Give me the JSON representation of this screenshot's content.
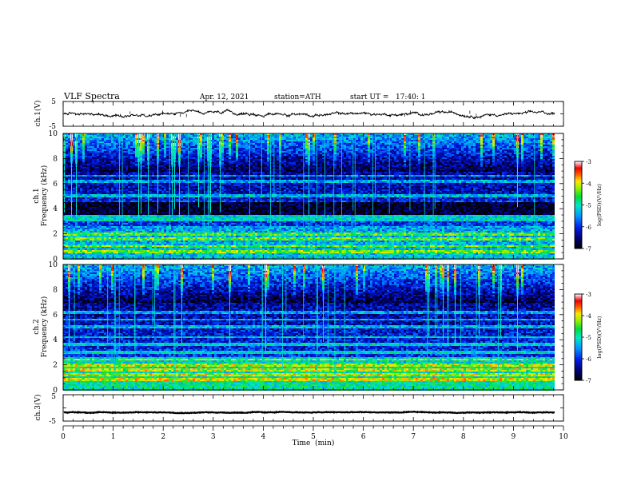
{
  "header": {
    "title": "VLF Spectra",
    "date": "Apr. 12, 2021",
    "station": "station=ATH",
    "start": "start UT =   17:40: 1"
  },
  "chart_data": [
    {
      "type": "line",
      "panel": "ch1-waveform",
      "ylabel": "ch.1(V)",
      "yticks": [
        "5",
        "-5"
      ],
      "ylim": [
        -5,
        5
      ],
      "mean_level_v": 0.0,
      "noise_amplitude_v": 0.5
    },
    {
      "type": "heatmap",
      "panel": "ch1-spectrogram",
      "ylabel": "ch.1\nFrequency (kHz)",
      "ylabel_top": "ch.1",
      "ylabel_main": "Frequency (kHz)",
      "yticks": [
        "0",
        "2",
        "4",
        "6",
        "8",
        "10"
      ],
      "ylim": [
        0,
        10
      ],
      "colorbar": {
        "label": "log(PSD)(V²/Hz)",
        "ticks": [
          "-3",
          "-4",
          "-5",
          "-6",
          "-7"
        ],
        "range": [
          -7,
          -3
        ]
      },
      "narrowband_lines_khz": [
        6.6,
        6.2,
        5.0,
        4.6,
        3.4,
        3.1,
        2.0,
        1.6,
        1.0,
        0.6
      ]
    },
    {
      "type": "heatmap",
      "panel": "ch2-spectrogram",
      "ylabel": "ch.2\nFrequency (kHz)",
      "ylabel_top": "ch.2",
      "ylabel_main": "Frequency (kHz)",
      "yticks": [
        "0",
        "2",
        "4",
        "6",
        "8",
        "10"
      ],
      "ylim": [
        0,
        10
      ],
      "colorbar": {
        "label": "log(PSD)(V²/Hz)",
        "ticks": [
          "-3",
          "-4",
          "-5",
          "-6",
          "-7"
        ],
        "range": [
          -7,
          -3
        ]
      },
      "narrowband_lines_khz": [
        6.2,
        5.6,
        5.0,
        4.2,
        3.6,
        3.0,
        2.4,
        2.0,
        1.6,
        1.2,
        0.8
      ]
    },
    {
      "type": "line",
      "panel": "ch3-waveform",
      "ylabel": "ch.3(V)",
      "yticks": [
        "5",
        "-5"
      ],
      "ylim": [
        -5,
        5
      ],
      "mean_level_v": -1.7,
      "noise_amplitude_v": 0.2
    }
  ],
  "xaxis": {
    "label": "Time  (min)",
    "ticks": [
      "0",
      "1",
      "2",
      "3",
      "4",
      "5",
      "6",
      "7",
      "8",
      "9",
      "10"
    ],
    "xlim": [
      0,
      10
    ],
    "data_end_min": 9.83
  }
}
